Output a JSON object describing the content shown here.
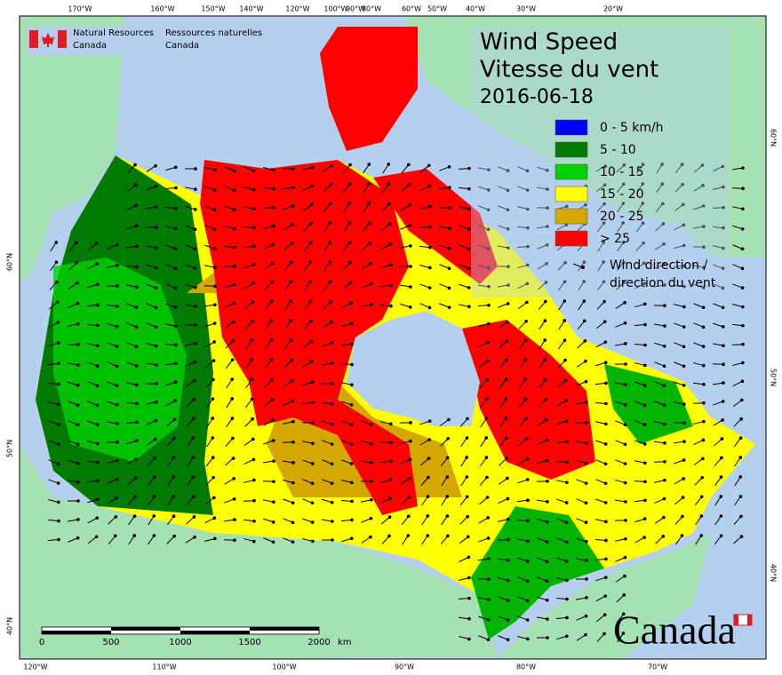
{
  "header": {
    "agency_en": [
      "Natural Resources",
      "Canada"
    ],
    "agency_fr": [
      "Ressources naturelles",
      "Canada"
    ]
  },
  "title": {
    "en": "Wind Speed",
    "fr": "Vitesse du vent",
    "date": "2016-06-18"
  },
  "legend": {
    "items": [
      {
        "label": "0 - 5 km/h",
        "color": "#0000ff"
      },
      {
        "label": "5 - 10",
        "color": "#007a00"
      },
      {
        "label": "10 - 15",
        "color": "#00d200"
      },
      {
        "label": "15 - 20",
        "color": "#ffff00"
      },
      {
        "label": "20 - 25",
        "color": "#d4a800"
      },
      {
        "label": "> 25",
        "color": "#ff0000"
      }
    ],
    "arrow_label": [
      "Wind direction /",
      "direction du vent"
    ]
  },
  "graticule": {
    "top": [
      "170°W",
      "160°W",
      "150°W",
      "140°W",
      "120°W",
      "100°W",
      "90°W",
      "80°W",
      "60°W",
      "50°W",
      "40°W",
      "30°W",
      "20°W"
    ],
    "bottom": [
      "120°W",
      "110°W",
      "100°W",
      "90°W",
      "80°W",
      "70°W"
    ],
    "left": [
      "60°N",
      "50°N",
      "40°N"
    ],
    "right": [
      "60°N",
      "50°N",
      "40°N"
    ]
  },
  "scale_bar": {
    "labels": [
      "0",
      "500",
      "1000",
      "1500",
      "2000"
    ],
    "unit": "km"
  },
  "wordmark": "Canada"
}
